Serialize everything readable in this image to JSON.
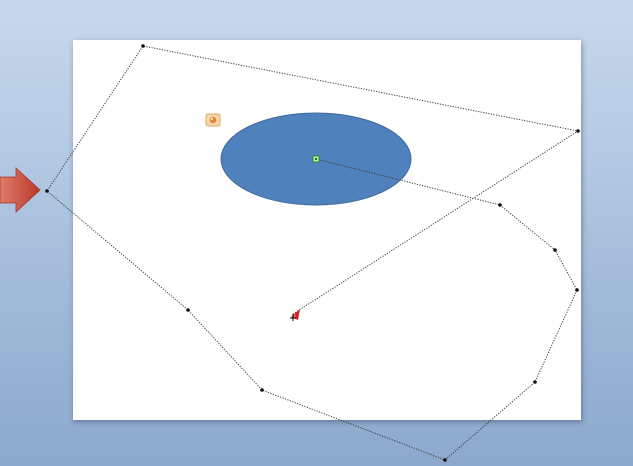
{
  "canvas": {
    "background_gradient_top": "#c9d8ec",
    "background_gradient_bottom": "#8ba8cc",
    "slide_color": "#ffffff"
  },
  "shape": {
    "type": "oval",
    "fill": "#4f81bd",
    "stroke": "#3f6a9e"
  },
  "motion_path": {
    "type": "custom-path",
    "line_style": "dotted",
    "color": "#3a3a3a",
    "start_marker_color": "#33aa33",
    "end_marker_color": "#d0201a"
  },
  "animation_tag": {
    "icon": "animation-effect-icon",
    "color": "#e8a85c"
  },
  "pointer_arrow": {
    "icon": "red-arrow-icon",
    "color": "#c9493c"
  }
}
